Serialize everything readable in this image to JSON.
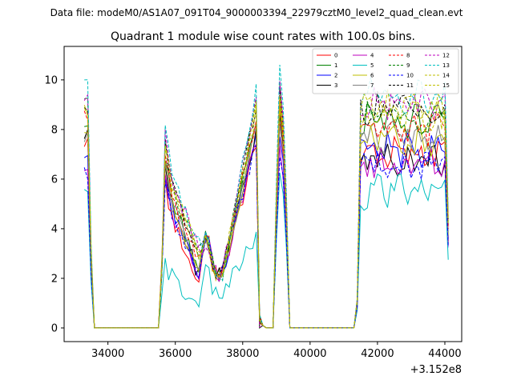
{
  "header": {
    "suptitle": "Data file: modeM0/AS1A07_091T04_9000003394_22979cztM0_level2_quad_clean.evt"
  },
  "chart_data": {
    "type": "line",
    "title": "Quadrant 1 module wise count rates with 100.0s bins.",
    "xlabel": "",
    "ylabel": "",
    "x_offset_label": "+3.152e8",
    "xlim": [
      32700,
      44500
    ],
    "ylim": [
      -0.55,
      11.35
    ],
    "x_ticks": [
      34000,
      36000,
      38000,
      40000,
      42000,
      44000
    ],
    "x_tick_labels": [
      "34000",
      "36000",
      "38000",
      "40000",
      "42000",
      "44000"
    ],
    "y_ticks": [
      0,
      2,
      4,
      6,
      8,
      10
    ],
    "y_tick_labels": [
      "0",
      "2",
      "4",
      "6",
      "8",
      "10"
    ],
    "grid": false,
    "legend_position": "top-right",
    "series": [
      {
        "name": "0",
        "color": "#ff0000",
        "dash": "solid",
        "level": 7.0,
        "base": 7.5,
        "pass2": 6.4
      },
      {
        "name": "1",
        "color": "#008000",
        "dash": "solid",
        "level": 8.3,
        "base": 8.4,
        "pass2": 7.4
      },
      {
        "name": "2",
        "color": "#0000ff",
        "dash": "solid",
        "level": 7.2,
        "base": 7.0,
        "pass2": 6.9
      },
      {
        "name": "3",
        "color": "#000000",
        "dash": "solid",
        "level": 6.8,
        "base": 7.8,
        "pass2": 7.0
      },
      {
        "name": "4",
        "color": "#bf00bf",
        "dash": "solid",
        "level": 6.6,
        "base": 6.6,
        "pass2": 6.6
      },
      {
        "name": "5",
        "color": "#00bfbf",
        "dash": "solid",
        "level": 5.5,
        "base": 5.3,
        "pass2": 5.0
      },
      {
        "name": "6",
        "color": "#bfbf00",
        "dash": "solid",
        "level": 7.5,
        "base": 8.1,
        "pass2": 7.2
      },
      {
        "name": "7",
        "color": "#808080",
        "dash": "solid",
        "level": 7.7,
        "base": 7.6,
        "pass2": 7.1
      },
      {
        "name": "8",
        "color": "#ff0000",
        "dash": "dashed",
        "level": 8.0,
        "base": 8.5,
        "pass2": 7.6
      },
      {
        "name": "9",
        "color": "#008000",
        "dash": "dashed",
        "level": 8.6,
        "base": 9.1,
        "pass2": 8.0
      },
      {
        "name": "10",
        "color": "#0000ff",
        "dash": "dashed",
        "level": 6.5,
        "base": 6.3,
        "pass2": 6.6
      },
      {
        "name": "11",
        "color": "#000000",
        "dash": "dashed",
        "level": 8.8,
        "base": 8.9,
        "pass2": 8.1
      },
      {
        "name": "12",
        "color": "#bf00bf",
        "dash": "dashed",
        "level": 9.1,
        "base": 9.3,
        "pass2": 8.5
      },
      {
        "name": "13",
        "color": "#00bfbf",
        "dash": "dashed",
        "level": 9.4,
        "base": 10.0,
        "pass2": 8.7
      },
      {
        "name": "14",
        "color": "#bfbf00",
        "dash": "dashed",
        "level": 8.4,
        "base": 8.8,
        "pass2": 7.9
      },
      {
        "name": "15",
        "color": "#bfbf00",
        "dash": "dashed",
        "level": 8.9,
        "base": 8.7,
        "pass2": 8.2
      }
    ]
  }
}
